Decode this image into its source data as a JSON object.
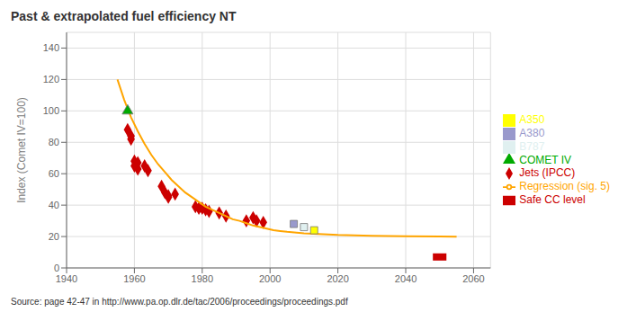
{
  "chart_data": {
    "type": "scatter",
    "title": "Past & extrapolated fuel efficiency NT",
    "ylabel": "Index (Comet IV=100)",
    "source": "Source: page 42-47 in http://www.pa.op.dlr.de/tac/2006/proceedings/proceedings.pdf",
    "xlim": [
      1940,
      2065
    ],
    "ylim": [
      0,
      150
    ],
    "xticks": [
      1940,
      1960,
      1980,
      2000,
      2020,
      2040,
      2060
    ],
    "yticks": [
      0,
      20,
      40,
      60,
      80,
      100,
      120,
      140
    ],
    "grid": true,
    "legend": "right",
    "series": [
      {
        "name": "Jets (IPCC)",
        "type": "scatter",
        "marker": "diamond",
        "color": "#cc0000",
        "x": [
          1958,
          1959,
          1959,
          1960,
          1960,
          1961,
          1961,
          1963,
          1964,
          1968,
          1969,
          1970,
          1970,
          1972,
          1978,
          1979,
          1980,
          1981,
          1982,
          1985,
          1987,
          1993,
          1995,
          1996,
          1998
        ],
        "values": [
          88,
          84,
          82,
          68,
          65,
          63,
          67,
          65,
          62,
          52,
          48,
          46,
          45,
          47,
          39,
          38,
          38,
          37,
          36,
          35,
          33,
          30,
          32,
          30,
          29
        ]
      },
      {
        "name": "Regression (sig. 5)",
        "type": "line",
        "line_style": "solid",
        "color": "#FFA500",
        "x": [
          1955,
          1957,
          1959,
          1961,
          1963,
          1965,
          1967,
          1969,
          1971,
          1973,
          1975,
          1977,
          1979,
          1981,
          1983,
          1985,
          1987,
          1989,
          1991,
          1993,
          1995,
          1997,
          1999,
          2001,
          2003,
          2005,
          2010,
          2020,
          2030,
          2040,
          2050,
          2055
        ],
        "values": [
          120,
          107,
          96,
          87,
          79,
          72,
          66,
          61,
          56,
          52,
          48,
          45,
          42,
          39,
          37,
          35,
          33,
          31,
          30,
          28.5,
          27,
          26,
          25,
          24,
          23.5,
          23,
          22,
          21,
          20.5,
          20.2,
          20.0,
          19.9
        ]
      },
      {
        "name": "A380",
        "type": "scatter",
        "marker": "square",
        "color": "#9999cc",
        "x": [
          2007
        ],
        "values": [
          28
        ]
      },
      {
        "name": "A350",
        "type": "scatter",
        "marker": "square",
        "color": "#ffff00",
        "x": [
          2013
        ],
        "values": [
          24
        ]
      },
      {
        "name": "B787",
        "type": "scatter",
        "marker": "square",
        "color": "#e0f0f0",
        "x": [
          2010
        ],
        "values": [
          26
        ]
      },
      {
        "name": "COMET IV",
        "type": "scatter",
        "marker": "triangle",
        "color": "#00aa00",
        "x": [
          1958
        ],
        "values": [
          100
        ]
      },
      {
        "name": "Safe CC level",
        "type": "line",
        "line_style": "thick",
        "color": "#cc0000",
        "x": [
          2048,
          2052
        ],
        "values": [
          7,
          7
        ]
      }
    ]
  }
}
